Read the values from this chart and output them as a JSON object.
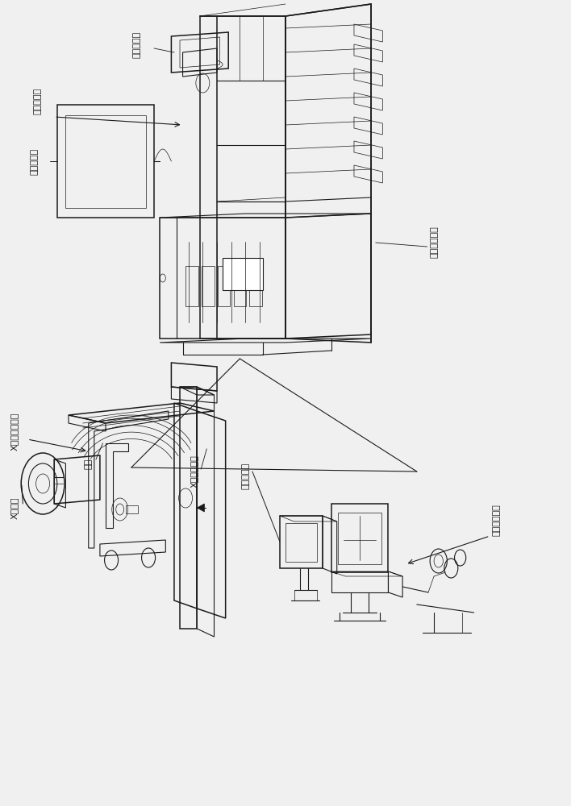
{
  "bg_color": "#f0f0f0",
  "line_color": "#1a1a1a",
  "label_color": "#1a1a1a",
  "labels": {
    "remote_console": "远程操作框",
    "fluoro_monitor_top": "透视监视器",
    "system_monitor": "系统监视器",
    "image_processing": "图像处理装置",
    "xray_diagnostic": "X射线诊断装置",
    "xray_tube": "X射线管",
    "table": "台面",
    "xray_detector": "X射线检测器",
    "fluoro_monitor_bottom": "透视监视器",
    "near_console": "近距离操作框"
  },
  "fs": 8.0
}
